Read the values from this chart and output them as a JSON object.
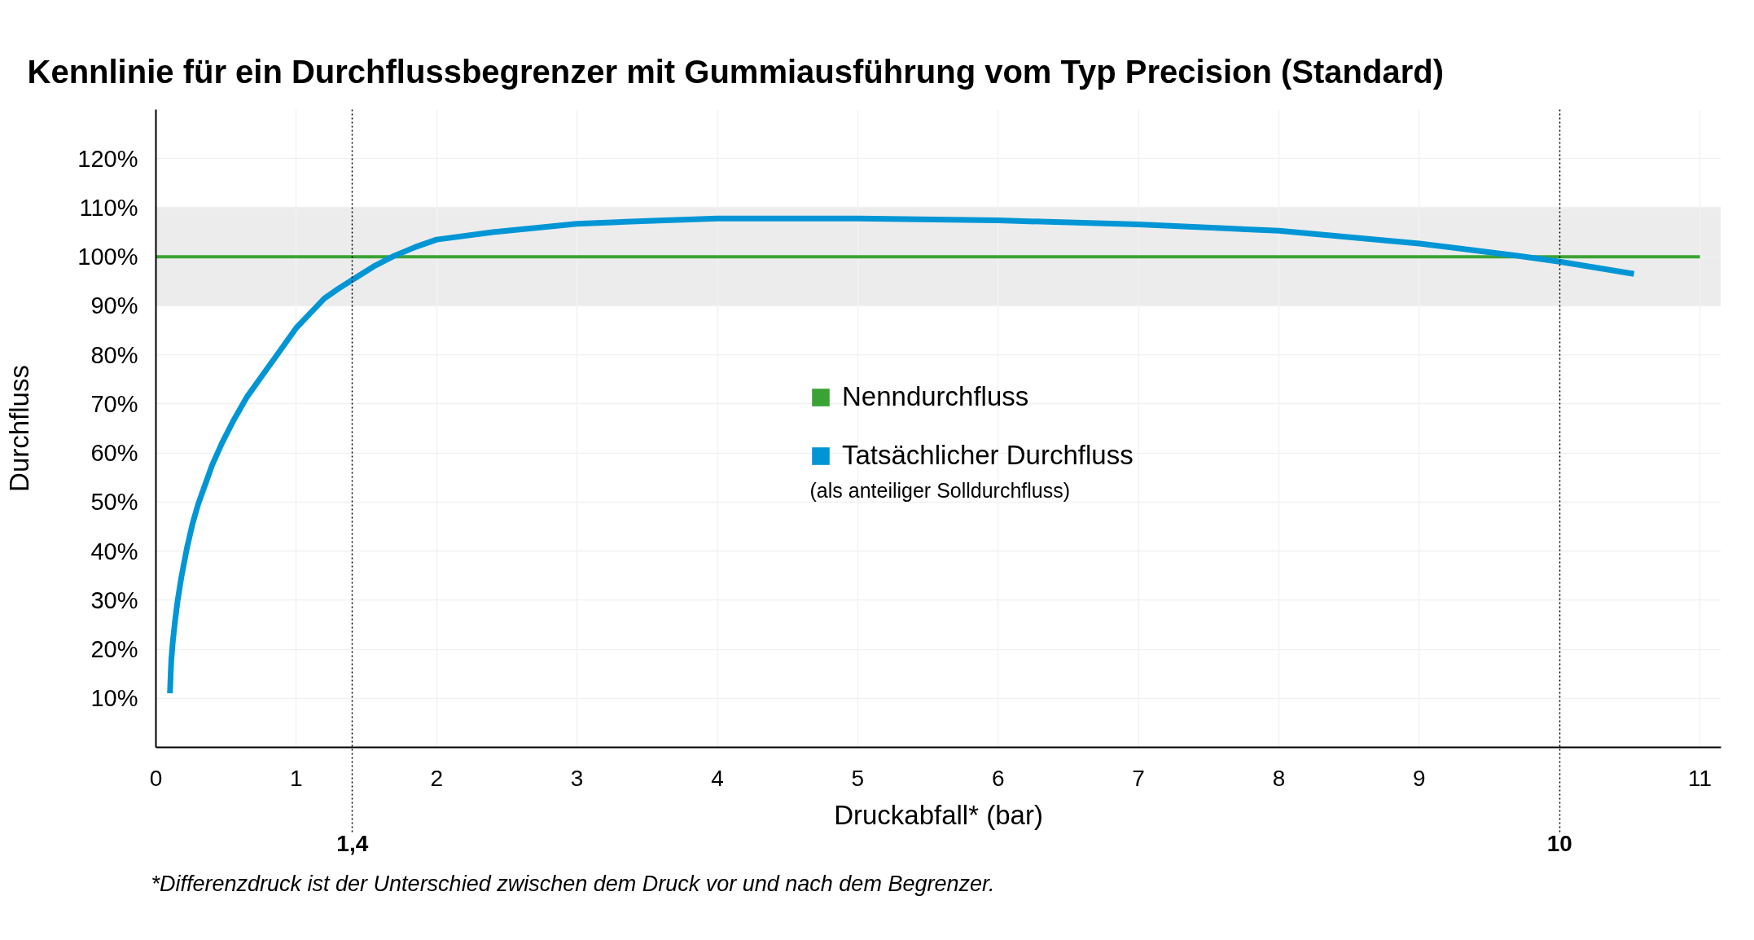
{
  "chart_data": {
    "type": "line",
    "title": "Kennlinie für ein Durchflussbegrenzer mit Gummiausführung vom Typ Precision (Standard)",
    "xlabel": "Druckabfall* (bar)",
    "ylabel": "Durchfluss",
    "series": [
      {
        "name": "Nenndurchfluss",
        "color": "#3aa335",
        "x": [
          0,
          11
        ],
        "values": [
          100,
          100
        ]
      },
      {
        "name": "Tatsächlicher Durchfluss",
        "color": "#0096d6",
        "x": [
          0.1,
          0.105,
          0.11,
          0.12,
          0.135,
          0.155,
          0.18,
          0.22,
          0.26,
          0.3,
          0.35,
          0.4,
          0.47,
          0.55,
          0.65,
          0.75,
          0.85,
          1.0,
          1.1,
          1.2,
          1.3,
          1.4,
          1.55,
          1.7,
          1.85,
          2.0,
          2.4,
          3.0,
          3.5,
          4.0,
          5.0,
          6.0,
          7.0,
          8.0,
          9.0,
          9.7,
          10.0,
          10.53
        ],
        "values": [
          11,
          15,
          18,
          21.5,
          25.5,
          30,
          34.5,
          40.5,
          45.5,
          49.5,
          53.5,
          57.5,
          62,
          66.5,
          71.5,
          75.5,
          79.5,
          85.5,
          88.5,
          91.5,
          93.5,
          95.3,
          98,
          100.2,
          102,
          103.5,
          105,
          106.7,
          107.3,
          107.8,
          107.8,
          107.4,
          106.6,
          105.3,
          102.7,
          100.2,
          99,
          96.5
        ]
      }
    ],
    "xlim": [
      0,
      11.15
    ],
    "ylim": [
      0,
      130
    ],
    "xticks": [
      0,
      1,
      2,
      3,
      4,
      5,
      6,
      7,
      8,
      9,
      {
        "value": 10,
        "label": null
      },
      11
    ],
    "yticks": [
      {
        "value": 10,
        "label": "10%"
      },
      {
        "value": 20,
        "label": "20%"
      },
      {
        "value": 30,
        "label": "30%"
      },
      {
        "value": 40,
        "label": "40%"
      },
      {
        "value": 50,
        "label": "50%"
      },
      {
        "value": 60,
        "label": "60%"
      },
      {
        "value": 70,
        "label": "70%"
      },
      {
        "value": 80,
        "label": "80%"
      },
      {
        "value": 90,
        "label": "90%"
      },
      {
        "value": 100,
        "label": "100%"
      },
      {
        "value": 110,
        "label": "110%"
      },
      {
        "value": 120,
        "label": "120%"
      }
    ],
    "grid": true,
    "legend": "center",
    "bands": [
      {
        "axis": "y",
        "from": 90,
        "to": 110,
        "color": "#ececec"
      }
    ],
    "ref_lines": [
      {
        "axis": "x",
        "value": 1.4,
        "label": "1,4",
        "line_style": "dotted",
        "color": "#000000"
      },
      {
        "axis": "x",
        "value": 10,
        "label": "10",
        "line_style": "dotted",
        "color": "#000000"
      }
    ],
    "annotations": [
      "(als anteiliger Solldurchfluss)",
      "*Differenzdruck ist der Unterschied zwischen dem Druck vor und nach dem Begrenzer."
    ]
  }
}
